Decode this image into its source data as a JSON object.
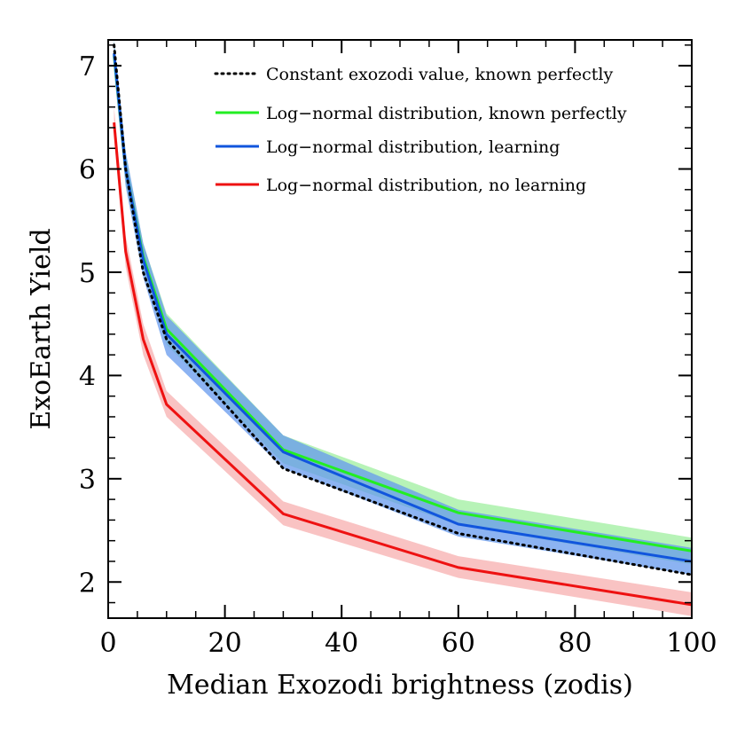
{
  "chart_data": {
    "type": "line",
    "xlabel": "Median Exozodi brightness (zodis)",
    "ylabel": "ExoEarth Yield",
    "xlim": [
      0,
      100
    ],
    "ylim": [
      1.65,
      7.25
    ],
    "xticks": [
      0,
      20,
      40,
      60,
      80,
      100
    ],
    "yticks": [
      2,
      3,
      4,
      5,
      6,
      7
    ],
    "legend_position": "top-right",
    "grid": false,
    "series": [
      {
        "name": "Constant exozodi value, known perfectly",
        "style": "dotted",
        "color": "#000000",
        "x": [
          1,
          3,
          6,
          10,
          30,
          60,
          100
        ],
        "y": [
          7.2,
          6.0,
          5.0,
          4.35,
          3.1,
          2.47,
          2.07
        ]
      },
      {
        "name": "Log−normal distribution, known perfectly",
        "style": "solid",
        "color": "#22ee22",
        "band_color": "#99ee99",
        "x": [
          1,
          3,
          6,
          10,
          30,
          60,
          100
        ],
        "y": [
          7.1,
          6.0,
          5.15,
          4.45,
          3.28,
          2.67,
          2.3
        ],
        "lower": [
          6.95,
          5.85,
          5.0,
          4.3,
          3.15,
          2.55,
          2.17
        ],
        "upper": [
          7.25,
          6.15,
          5.28,
          4.6,
          3.42,
          2.8,
          2.43
        ]
      },
      {
        "name": "Log−normal distribution, learning",
        "style": "solid",
        "color": "#1155dd",
        "band_color": "#6699ee",
        "x": [
          1,
          3,
          6,
          10,
          30,
          60,
          100
        ],
        "y": [
          7.12,
          6.0,
          5.12,
          4.4,
          3.26,
          2.56,
          2.2
        ],
        "lower": [
          6.95,
          5.83,
          4.95,
          4.2,
          3.1,
          2.44,
          2.07
        ],
        "upper": [
          7.25,
          6.17,
          5.28,
          4.58,
          3.42,
          2.7,
          2.33
        ]
      },
      {
        "name": "Log−normal distribution, no learning",
        "style": "solid",
        "color": "#ee1111",
        "band_color": "#f7aaaa",
        "x": [
          1,
          3,
          6,
          10,
          30,
          60,
          100
        ],
        "y": [
          6.45,
          5.2,
          4.35,
          3.72,
          2.66,
          2.14,
          1.78
        ],
        "lower": [
          6.3,
          5.05,
          4.2,
          3.6,
          2.55,
          2.04,
          1.67
        ],
        "upper": [
          6.6,
          5.35,
          4.5,
          3.85,
          2.78,
          2.25,
          1.9
        ]
      }
    ]
  }
}
